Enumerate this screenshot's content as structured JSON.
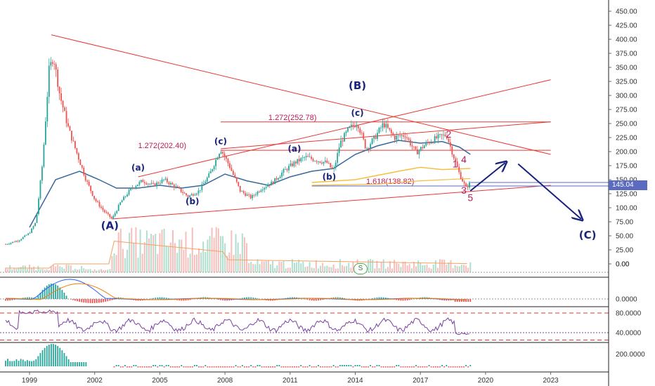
{
  "chart_data": {
    "type": "candlestick",
    "x_axis": {
      "ticks": [
        "1999",
        "2002",
        "2005",
        "2008",
        "2011",
        "2014",
        "2017",
        "2020",
        "2023"
      ]
    },
    "y_axis": {
      "ticks": [
        "450.00",
        "425.00",
        "400.00",
        "375.00",
        "350.00",
        "325.00",
        "300.00",
        "275.00",
        "250.00",
        "225.00",
        "200.00",
        "175.00",
        "150.00",
        "125.00",
        "100.00",
        "75.00",
        "50.00",
        "25.00",
        "0.00"
      ],
      "range": [
        0,
        450
      ]
    },
    "last_price": "145.04",
    "price_series": [
      {
        "year": 1997.9,
        "price": 35
      },
      {
        "year": 1998.5,
        "price": 42
      },
      {
        "year": 1999.0,
        "price": 55
      },
      {
        "year": 1999.3,
        "price": 75
      },
      {
        "year": 1999.6,
        "price": 180
      },
      {
        "year": 1999.9,
        "price": 345
      },
      {
        "year": 2000.1,
        "price": 370
      },
      {
        "year": 2000.4,
        "price": 300
      },
      {
        "year": 2000.8,
        "price": 240
      },
      {
        "year": 2001.2,
        "price": 195
      },
      {
        "year": 2001.6,
        "price": 150
      },
      {
        "year": 2002.0,
        "price": 115
      },
      {
        "year": 2002.4,
        "price": 95
      },
      {
        "year": 2002.8,
        "price": 80
      },
      {
        "year": 2003.2,
        "price": 110
      },
      {
        "year": 2003.7,
        "price": 135
      },
      {
        "year": 2004.2,
        "price": 148
      },
      {
        "year": 2004.7,
        "price": 140
      },
      {
        "year": 2005.2,
        "price": 150
      },
      {
        "year": 2005.8,
        "price": 135
      },
      {
        "year": 2006.3,
        "price": 120
      },
      {
        "year": 2006.8,
        "price": 130
      },
      {
        "year": 2007.3,
        "price": 160
      },
      {
        "year": 2007.8,
        "price": 205
      },
      {
        "year": 2008.2,
        "price": 175
      },
      {
        "year": 2008.7,
        "price": 130
      },
      {
        "year": 2009.2,
        "price": 118
      },
      {
        "year": 2009.7,
        "price": 135
      },
      {
        "year": 2010.2,
        "price": 145
      },
      {
        "year": 2010.7,
        "price": 165
      },
      {
        "year": 2011.2,
        "price": 180
      },
      {
        "year": 2011.7,
        "price": 190
      },
      {
        "year": 2012.2,
        "price": 185
      },
      {
        "year": 2012.7,
        "price": 180
      },
      {
        "year": 2013.0,
        "price": 165
      },
      {
        "year": 2013.3,
        "price": 215
      },
      {
        "year": 2013.7,
        "price": 240
      },
      {
        "year": 2014.1,
        "price": 252
      },
      {
        "year": 2014.5,
        "price": 205
      },
      {
        "year": 2014.9,
        "price": 225
      },
      {
        "year": 2015.3,
        "price": 250
      },
      {
        "year": 2015.8,
        "price": 225
      },
      {
        "year": 2016.3,
        "price": 230
      },
      {
        "year": 2016.8,
        "price": 198
      },
      {
        "year": 2017.3,
        "price": 215
      },
      {
        "year": 2017.8,
        "price": 225
      },
      {
        "year": 2018.2,
        "price": 230
      },
      {
        "year": 2018.5,
        "price": 195
      },
      {
        "year": 2018.8,
        "price": 160
      },
      {
        "year": 2019.1,
        "price": 135
      },
      {
        "year": 2019.3,
        "price": 145
      }
    ],
    "ma_long": [
      {
        "year": 1999.0,
        "price": 65
      },
      {
        "year": 2000.2,
        "price": 150
      },
      {
        "year": 2001.3,
        "price": 165
      },
      {
        "year": 2002.2,
        "price": 150
      },
      {
        "year": 2003.0,
        "price": 135
      },
      {
        "year": 2004.0,
        "price": 135
      },
      {
        "year": 2005.0,
        "price": 140
      },
      {
        "year": 2006.0,
        "price": 135
      },
      {
        "year": 2007.0,
        "price": 140
      },
      {
        "year": 2008.0,
        "price": 160
      },
      {
        "year": 2009.0,
        "price": 148
      },
      {
        "year": 2010.0,
        "price": 140
      },
      {
        "year": 2011.0,
        "price": 155
      },
      {
        "year": 2012.0,
        "price": 165
      },
      {
        "year": 2013.0,
        "price": 170
      },
      {
        "year": 2014.0,
        "price": 195
      },
      {
        "year": 2015.0,
        "price": 210
      },
      {
        "year": 2016.0,
        "price": 220
      },
      {
        "year": 2017.0,
        "price": 215
      },
      {
        "year": 2018.0,
        "price": 218
      },
      {
        "year": 2018.8,
        "price": 208
      },
      {
        "year": 2019.3,
        "price": 195
      }
    ],
    "ma_gold": [
      {
        "year": 2012.0,
        "price": 145
      },
      {
        "year": 2014.0,
        "price": 150
      },
      {
        "year": 2016.0,
        "price": 165
      },
      {
        "year": 2017.0,
        "price": 172
      },
      {
        "year": 2018.0,
        "price": 168
      },
      {
        "year": 2019.3,
        "price": 170
      }
    ],
    "ma_gold_lower": [
      {
        "year": 2012.0,
        "price": 140
      },
      {
        "year": 2015.0,
        "price": 142
      },
      {
        "year": 2017.0,
        "price": 148
      },
      {
        "year": 2019.3,
        "price": 152
      }
    ],
    "trendlines": [
      {
        "from": {
          "year": 2000.0,
          "price": 408
        },
        "to": {
          "year": 2023.0,
          "price": 195
        }
      },
      {
        "from": {
          "year": 2004.0,
          "price": 155
        },
        "to": {
          "year": 2023.0,
          "price": 328
        }
      },
      {
        "from": {
          "year": 2002.8,
          "price": 80
        },
        "to": {
          "year": 2023.0,
          "price": 140
        }
      },
      {
        "from": {
          "year": 2007.8,
          "price": 205
        },
        "to": {
          "year": 2023.0,
          "price": 253
        }
      }
    ],
    "fib_levels": [
      {
        "label": "1.272(252.78)",
        "price": 252.78,
        "label_year": 2010.0
      },
      {
        "label": "1.272(202.40)",
        "price": 202.4,
        "label_year": 2004.0
      },
      {
        "label": "1.618(138.82)",
        "price": 138.82,
        "label_year": 2014.5
      }
    ],
    "waves": [
      {
        "label": "(A)",
        "year": 2002.7,
        "price": 62,
        "size": "large"
      },
      {
        "label": "(a)",
        "year": 2004.0,
        "price": 166,
        "size": "small"
      },
      {
        "label": "(b)",
        "year": 2006.5,
        "price": 106,
        "size": "small"
      },
      {
        "label": "(c)",
        "year": 2007.8,
        "price": 213,
        "size": "small"
      },
      {
        "label": "(a)",
        "year": 2011.2,
        "price": 200,
        "size": "small"
      },
      {
        "label": "(b)",
        "year": 2012.8,
        "price": 150,
        "size": "small"
      },
      {
        "label": "(c)",
        "year": 2014.1,
        "price": 264,
        "size": "small"
      },
      {
        "label": "(B)",
        "year": 2014.1,
        "price": 311,
        "size": "large"
      },
      {
        "label": "(C)",
        "year": 2024.7,
        "price": 45,
        "size": "large"
      }
    ],
    "wave_numbers": [
      {
        "label": "1",
        "year": 2018.6,
        "price": 172
      },
      {
        "label": "2",
        "year": 2018.3,
        "price": 225
      },
      {
        "label": "3",
        "year": 2019.0,
        "price": 125
      },
      {
        "label": "4",
        "year": 2019.0,
        "price": 180
      },
      {
        "label": "5",
        "year": 2019.3,
        "price": 112
      }
    ],
    "projection_path": [
      {
        "year": 2019.3,
        "price": 130
      },
      {
        "year": 2020.9,
        "price": 180
      },
      {
        "year": 2021.5,
        "price": 178
      },
      {
        "year": 2024.4,
        "price": 80
      }
    ],
    "volume_panel": {
      "label": "0.00"
    },
    "oscillator_panel_1": {
      "label": "0.0000"
    },
    "rsi_panel": {
      "labels": [
        "80.0000",
        "40.0000"
      ]
    },
    "oscillator_panel_2": {
      "label": "200.0000"
    },
    "signal_badge": "S",
    "colors": {
      "up": "#26a69a",
      "down": "#ef5350",
      "trend": "#e53935",
      "ma_long": "#37699a",
      "ma_gold": "#f5bf42",
      "wave_label": "#1a237e",
      "fib_label": "#c2185b",
      "projection": "#1a237e",
      "rsi": "#7b3fa0",
      "price_line": "#5b6bbf"
    }
  }
}
